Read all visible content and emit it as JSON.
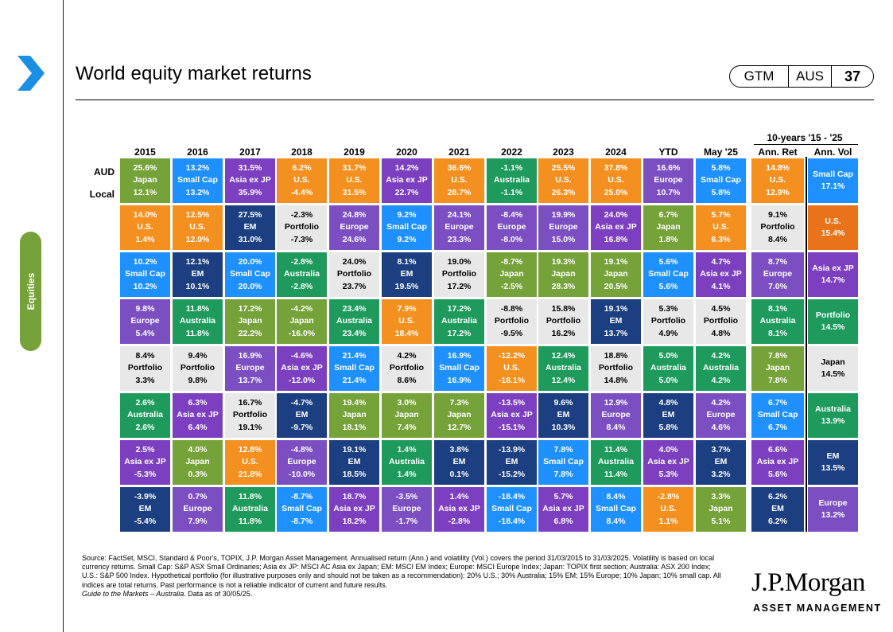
{
  "page": {
    "title": "World equity market returns",
    "badge": {
      "a": "GTM",
      "b": "AUS",
      "page": "37"
    },
    "side_tab": "Equities"
  },
  "chart_data": {
    "type": "table",
    "title": "World equity market returns",
    "columns": [
      "2015",
      "2016",
      "2017",
      "2018",
      "2019",
      "2020",
      "2021",
      "2022",
      "2023",
      "2024",
      "YTD",
      "May '25"
    ],
    "group_header": "10-years '15 - '25",
    "summary_columns": [
      "Ann. Ret",
      "Ann. Vol"
    ],
    "row_labels": {
      "aud": "AUD",
      "local": "Local"
    },
    "colors": {
      "Japan": "#76a23a",
      "Small Cap": "#1e90ff",
      "Asia ex JP": "#7b3fbf",
      "U.S.": "#f39020",
      "Europe": "#7b4fc2",
      "Australia": "#1e9a5c",
      "EM": "#1b3f80",
      "Portfolio": "#e8e8e8"
    },
    "vol_colors": {
      "Small Cap": "#1e90ff",
      "U.S.": "#e8731a",
      "Asia ex JP": "#7b3fbf",
      "Portfolio": "#1e9a5c",
      "Japan": "#e8e8e8",
      "Australia": "#1e9a5c",
      "EM": "#1b3f80",
      "Europe": "#7b4fc2"
    },
    "years": [
      [
        [
          "25.6%",
          "Japan",
          "12.1%"
        ],
        [
          "14.0%",
          "U.S.",
          "1.4%"
        ],
        [
          "10.2%",
          "Small Cap",
          "10.2%"
        ],
        [
          "9.8%",
          "Europe",
          "5.4%"
        ],
        [
          "8.4%",
          "Portfolio",
          "3.3%"
        ],
        [
          "2.6%",
          "Australia",
          "2.6%"
        ],
        [
          "2.5%",
          "Asia ex JP",
          "-5.3%"
        ],
        [
          "-3.9%",
          "EM",
          "-5.4%"
        ]
      ],
      [
        [
          "13.2%",
          "Small Cap",
          "13.2%"
        ],
        [
          "12.5%",
          "U.S.",
          "12.0%"
        ],
        [
          "12.1%",
          "EM",
          "10.1%"
        ],
        [
          "11.8%",
          "Australia",
          "11.8%"
        ],
        [
          "9.4%",
          "Portfolio",
          "9.8%"
        ],
        [
          "6.3%",
          "Asia ex JP",
          "6.4%"
        ],
        [
          "4.0%",
          "Japan",
          "0.3%"
        ],
        [
          "0.7%",
          "Europe",
          "7.9%"
        ]
      ],
      [
        [
          "31.5%",
          "Asia ex JP",
          "35.9%"
        ],
        [
          "27.5%",
          "EM",
          "31.0%"
        ],
        [
          "20.0%",
          "Small Cap",
          "20.0%"
        ],
        [
          "17.2%",
          "Japan",
          "22.2%"
        ],
        [
          "16.9%",
          "Europe",
          "13.7%"
        ],
        [
          "16.7%",
          "Portfolio",
          "19.1%"
        ],
        [
          "12.8%",
          "U.S.",
          "21.8%"
        ],
        [
          "11.8%",
          "Australia",
          "11.8%"
        ]
      ],
      [
        [
          "6.2%",
          "U.S.",
          "-4.4%"
        ],
        [
          "-2.3%",
          "Portfolio",
          "-7.3%"
        ],
        [
          "-2.8%",
          "Australia",
          "-2.8%"
        ],
        [
          "-4.2%",
          "Japan",
          "-16.0%"
        ],
        [
          "-4.6%",
          "Asia ex JP",
          "-12.0%"
        ],
        [
          "-4.7%",
          "EM",
          "-9.7%"
        ],
        [
          "-4.8%",
          "Europe",
          "-10.0%"
        ],
        [
          "-8.7%",
          "Small Cap",
          "-8.7%"
        ]
      ],
      [
        [
          "31.7%",
          "U.S.",
          "31.5%"
        ],
        [
          "24.8%",
          "Europe",
          "24.6%"
        ],
        [
          "24.0%",
          "Portfolio",
          "23.7%"
        ],
        [
          "23.4%",
          "Australia",
          "23.4%"
        ],
        [
          "21.4%",
          "Small Cap",
          "21.4%"
        ],
        [
          "19.4%",
          "Japan",
          "18.1%"
        ],
        [
          "19.1%",
          "EM",
          "18.5%"
        ],
        [
          "18.7%",
          "Asia ex JP",
          "18.2%"
        ]
      ],
      [
        [
          "14.2%",
          "Asia ex JP",
          "22.7%"
        ],
        [
          "9.2%",
          "Small Cap",
          "9.2%"
        ],
        [
          "8.1%",
          "EM",
          "19.5%"
        ],
        [
          "7.9%",
          "U.S.",
          "18.4%"
        ],
        [
          "4.2%",
          "Portfolio",
          "8.6%"
        ],
        [
          "3.0%",
          "Japan",
          "7.4%"
        ],
        [
          "1.4%",
          "Australia",
          "1.4%"
        ],
        [
          "-3.5%",
          "Europe",
          "-1.7%"
        ]
      ],
      [
        [
          "36.6%",
          "U.S.",
          "28.7%"
        ],
        [
          "24.1%",
          "Europe",
          "23.3%"
        ],
        [
          "19.0%",
          "Portfolio",
          "17.2%"
        ],
        [
          "17.2%",
          "Australia",
          "17.2%"
        ],
        [
          "16.9%",
          "Small Cap",
          "16.9%"
        ],
        [
          "7.3%",
          "Japan",
          "12.7%"
        ],
        [
          "3.8%",
          "EM",
          "0.1%"
        ],
        [
          "1.4%",
          "Asia ex JP",
          "-2.8%"
        ]
      ],
      [
        [
          "-1.1%",
          "Australia",
          "-1.1%"
        ],
        [
          "-8.4%",
          "Europe",
          "-8.0%"
        ],
        [
          "-8.7%",
          "Japan",
          "-2.5%"
        ],
        [
          "-8.8%",
          "Portfolio",
          "-9.5%"
        ],
        [
          "-12.2%",
          "U.S.",
          "-18.1%"
        ],
        [
          "-13.5%",
          "Asia ex JP",
          "-15.1%"
        ],
        [
          "-13.9%",
          "EM",
          "-15.2%"
        ],
        [
          "-18.4%",
          "Small Cap",
          "-18.4%"
        ]
      ],
      [
        [
          "25.5%",
          "U.S.",
          "26.3%"
        ],
        [
          "19.9%",
          "Europe",
          "15.0%"
        ],
        [
          "19.3%",
          "Japan",
          "28.3%"
        ],
        [
          "15.8%",
          "Portfolio",
          "16.2%"
        ],
        [
          "12.4%",
          "Australia",
          "12.4%"
        ],
        [
          "9.6%",
          "EM",
          "10.3%"
        ],
        [
          "7.8%",
          "Small Cap",
          "7.8%"
        ],
        [
          "5.7%",
          "Asia ex JP",
          "6.8%"
        ]
      ],
      [
        [
          "37.8%",
          "U.S.",
          "25.0%"
        ],
        [
          "24.0%",
          "Asia ex JP",
          "16.8%"
        ],
        [
          "19.1%",
          "Japan",
          "20.5%"
        ],
        [
          "19.1%",
          "EM",
          "13.7%"
        ],
        [
          "18.8%",
          "Portfolio",
          "14.8%"
        ],
        [
          "12.9%",
          "Europe",
          "8.4%"
        ],
        [
          "11.4%",
          "Australia",
          "11.4%"
        ],
        [
          "8.4%",
          "Small Cap",
          "8.4%"
        ]
      ],
      [
        [
          "16.6%",
          "Europe",
          "10.7%"
        ],
        [
          "6.7%",
          "Japan",
          "1.8%"
        ],
        [
          "5.6%",
          "Small Cap",
          "5.6%"
        ],
        [
          "5.3%",
          "Portfolio",
          "4.9%"
        ],
        [
          "5.0%",
          "Australia",
          "5.0%"
        ],
        [
          "4.8%",
          "EM",
          "5.8%"
        ],
        [
          "4.0%",
          "Asia ex JP",
          "5.3%"
        ],
        [
          "-2.8%",
          "U.S.",
          "1.1%"
        ]
      ],
      [
        [
          "5.8%",
          "Small Cap",
          "5.8%"
        ],
        [
          "5.7%",
          "U.S.",
          "6.3%"
        ],
        [
          "4.7%",
          "Asia ex JP",
          "4.1%"
        ],
        [
          "4.5%",
          "Portfolio",
          "4.8%"
        ],
        [
          "4.2%",
          "Australia",
          "4.2%"
        ],
        [
          "4.2%",
          "Europe",
          "4.6%"
        ],
        [
          "3.7%",
          "EM",
          "3.2%"
        ],
        [
          "3.3%",
          "Japan",
          "5.1%"
        ]
      ]
    ],
    "ann_ret": [
      [
        "14.8%",
        "U.S.",
        "12.9%"
      ],
      [
        "9.1%",
        "Portfolio",
        "8.4%"
      ],
      [
        "8.7%",
        "Europe",
        "7.0%"
      ],
      [
        "8.1%",
        "Australia",
        "8.1%"
      ],
      [
        "7.8%",
        "Japan",
        "7.8%"
      ],
      [
        "6.7%",
        "Small Cap",
        "6.7%"
      ],
      [
        "6.6%",
        "Asia ex JP",
        "5.6%"
      ],
      [
        "6.2%",
        "EM",
        "6.2%"
      ]
    ],
    "ann_vol": [
      [
        "Small Cap",
        "17.1%"
      ],
      [
        "U.S.",
        "15.4%"
      ],
      [
        "Asia ex JP",
        "14.7%"
      ],
      [
        "Portfolio",
        "14.5%"
      ],
      [
        "Japan",
        "14.5%"
      ],
      [
        "Australia",
        "13.9%"
      ],
      [
        "EM",
        "13.5%"
      ],
      [
        "Europe",
        "13.2%"
      ]
    ]
  },
  "footer": {
    "source": "Source: FactSet, MSCI,  Standard & Poor's, TOPIX,  J.P. Morgan  Asset Management. Annualised return (Ann.) and volatility (Vol.) covers the period  31/03/2015 to 31/03/2025. Volatility is based on local currency returns. Small Cap: S&P  ASX Small  Ordinaries; Asia ex JP: MSCI  AC Asia ex Japan; EM:  MSCI  EM  Index; Europe:  MSCI Europe Index; Japan: TOPIX  first section; Australia: ASX 200 Index; U.S.:  S&P 500 Index.  Hypothetical portfolio (for illustrative purposes only and should not be taken as a recommendation): 20% U.S.;  30% Australia; 15% EM;  15% Europe; 10% Japan; 10% small cap. All indices are total returns. Past performance is not a reliable indicator of current and future results.",
    "guide": "Guide to the Markets – Australia",
    "asof": ". Data as of 30/05/25.",
    "brand": "J.P.Morgan",
    "brand_sub": "ASSET MANAGEMENT"
  }
}
